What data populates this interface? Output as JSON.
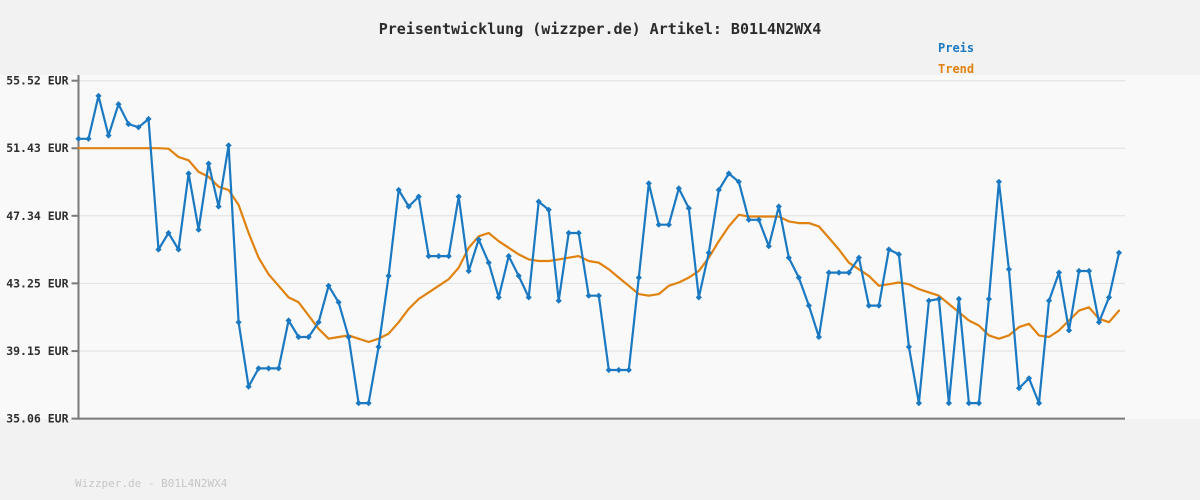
{
  "title": "Preisentwicklung (wizzper.de) Artikel: B01L4N2WX4",
  "footer": "Wizzper.de - B01L4N2WX4",
  "legend": {
    "price_label": "Preis",
    "trend_label": "Trend"
  },
  "colors": {
    "price": "#1b79c2",
    "trend": "#e0820f",
    "grid": "#e0e0e0",
    "axis": "#7a7a7a",
    "tick_text": "#2e2e2e",
    "title_text": "#2b2b2b",
    "footer_text": "#c6c6c6",
    "page_bg": "#f2f2f2",
    "plot_bg": "#f9f9f9"
  },
  "chart_data": {
    "type": "line",
    "title": "Preisentwicklung (wizzper.de) Artikel: B01L4N2WX4",
    "xlabel": "",
    "ylabel": "EUR",
    "grid": true,
    "legend_position": "top-right",
    "ylim": [
      35.06,
      55.52
    ],
    "ytick_values": [
      55.52,
      51.43,
      47.34,
      43.25,
      39.15,
      35.06
    ],
    "ytick_labels": [
      "55.52 EUR",
      "51.43 EUR",
      "47.34 EUR",
      "43.25 EUR",
      "39.15 EUR",
      "35.06 EUR"
    ],
    "series": [
      {
        "name": "Preis",
        "style": "line-with-diamond-markers",
        "values": [
          52.0,
          52.0,
          54.6,
          52.2,
          54.1,
          52.9,
          52.7,
          53.2,
          45.3,
          46.3,
          45.3,
          49.9,
          46.5,
          50.5,
          47.9,
          51.6,
          40.9,
          37.0,
          38.1,
          38.1,
          38.1,
          41.0,
          40.0,
          40.0,
          40.9,
          43.1,
          42.1,
          40.0,
          36.0,
          36.0,
          39.4,
          43.7,
          48.9,
          47.9,
          48.5,
          44.9,
          44.9,
          44.9,
          48.5,
          44.0,
          45.9,
          44.5,
          42.4,
          44.9,
          43.7,
          42.4,
          48.2,
          47.7,
          42.2,
          46.3,
          46.3,
          42.5,
          42.5,
          38.0,
          38.0,
          38.0,
          43.6,
          49.3,
          46.8,
          46.8,
          49.0,
          47.8,
          42.4,
          45.1,
          48.9,
          49.9,
          49.4,
          47.1,
          47.1,
          45.5,
          47.9,
          44.8,
          43.6,
          41.9,
          40.0,
          43.9,
          43.9,
          43.9,
          44.8,
          41.9,
          41.9,
          45.3,
          45.0,
          39.4,
          36.0,
          42.2,
          42.3,
          36.0,
          42.3,
          36.0,
          36.0,
          42.3,
          49.4,
          44.1,
          36.9,
          37.5,
          36.0,
          42.2,
          43.9,
          40.4,
          44.0,
          44.0,
          40.9,
          42.4,
          45.1
        ]
      },
      {
        "name": "Trend",
        "style": "smooth-line",
        "values": [
          51.43,
          51.43,
          51.43,
          51.43,
          51.43,
          51.43,
          51.43,
          51.43,
          51.43,
          51.4,
          50.9,
          50.7,
          50.0,
          49.7,
          49.1,
          48.9,
          48.0,
          46.3,
          44.8,
          43.8,
          43.1,
          42.4,
          42.1,
          41.3,
          40.5,
          39.9,
          40.0,
          40.1,
          39.9,
          39.7,
          39.9,
          40.2,
          40.9,
          41.7,
          42.3,
          42.7,
          43.1,
          43.5,
          44.2,
          45.4,
          46.1,
          46.3,
          45.8,
          45.4,
          45.0,
          44.7,
          44.6,
          44.6,
          44.7,
          44.8,
          44.9,
          44.6,
          44.5,
          44.1,
          43.6,
          43.1,
          42.6,
          42.5,
          42.6,
          43.1,
          43.3,
          43.6,
          44.0,
          44.8,
          45.8,
          46.7,
          47.4,
          47.3,
          47.3,
          47.3,
          47.3,
          47.0,
          46.9,
          46.9,
          46.7,
          46.0,
          45.3,
          44.5,
          44.1,
          43.7,
          43.1,
          43.2,
          43.3,
          43.2,
          42.9,
          42.7,
          42.5,
          42.0,
          41.5,
          41.0,
          40.7,
          40.1,
          39.9,
          40.1,
          40.6,
          40.8,
          40.1,
          40.0,
          40.4,
          41.0,
          41.6,
          41.8,
          41.1,
          40.9,
          41.6
        ]
      }
    ]
  }
}
